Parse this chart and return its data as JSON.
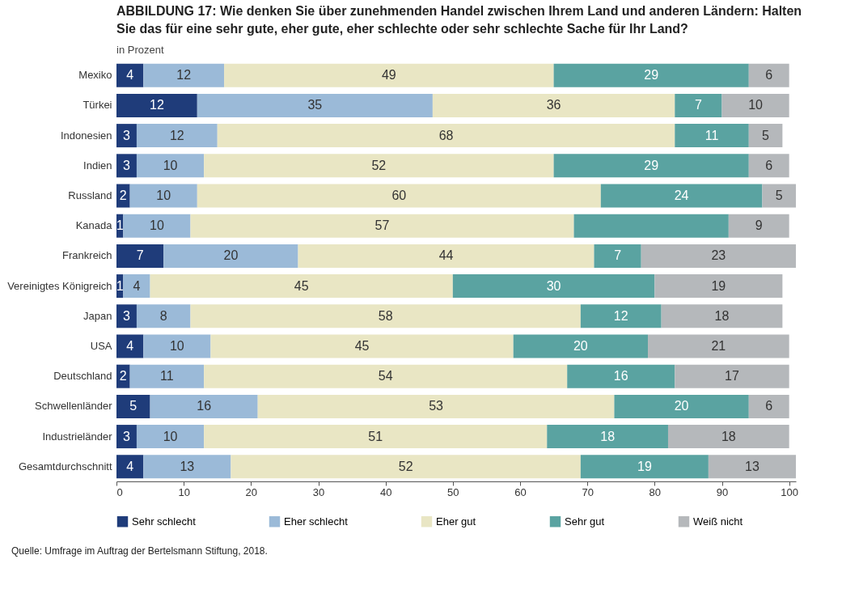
{
  "chart_data": {
    "type": "bar",
    "orientation": "horizontal",
    "stacked": true,
    "title": "ABBILDUNG 17: Wie denken Sie über zunehmenden Handel zwischen Ihrem Land und anderen Ländern: Halten Sie das für eine sehr gute, eher gute, eher schlechte oder sehr schlechte Sache für Ihr Land?",
    "subtitle": "in Prozent",
    "categories": [
      "Mexiko",
      "Türkei",
      "Indonesien",
      "Indien",
      "Russland",
      "Kanada",
      "Frankreich",
      "Vereinigtes Königreich",
      "Japan",
      "USA",
      "Deutschland",
      "Schwellenländer",
      "Industrieländer",
      "Gesamtdurchschnitt"
    ],
    "series": [
      {
        "name": "Sehr schlecht",
        "color": "#1f3c7a",
        "values": [
          4,
          12,
          3,
          3,
          2,
          1,
          7,
          1,
          3,
          4,
          2,
          5,
          3,
          4
        ],
        "value_labels": [
          "4",
          "12",
          "3",
          "3",
          "2",
          "1",
          "7",
          "1",
          "3",
          "4",
          "2",
          "5",
          "3",
          "4"
        ]
      },
      {
        "name": "Eher schlecht",
        "color": "#9bbad8",
        "values": [
          12,
          35,
          12,
          10,
          10,
          10,
          20,
          4,
          8,
          10,
          11,
          16,
          10,
          13
        ],
        "value_labels": [
          "12",
          "35",
          "12",
          "10",
          "10",
          "10",
          "20",
          "4",
          "8",
          "10",
          "11",
          "16",
          "10",
          "13"
        ]
      },
      {
        "name": "Eher gut",
        "color": "#e9e6c4",
        "values": [
          49,
          36,
          68,
          52,
          60,
          57,
          44,
          45,
          58,
          45,
          54,
          53,
          51,
          52
        ],
        "value_labels": [
          "49",
          "36",
          "68",
          "52",
          "60",
          "57",
          "44",
          "45",
          "58",
          "45",
          "54",
          "53",
          "51",
          "52"
        ]
      },
      {
        "name": "Sehr gut",
        "color": "#5aa3a1",
        "values": [
          29,
          7,
          11,
          29,
          24,
          23,
          7,
          30,
          12,
          20,
          16,
          20,
          18,
          19
        ],
        "value_labels": [
          "29",
          "7",
          "11",
          "29",
          "24",
          null,
          "7",
          "30",
          "12",
          "20",
          "16",
          "20",
          "18",
          "19"
        ]
      },
      {
        "name": "Weiß nicht",
        "color": "#b5b8bb",
        "values": [
          6,
          10,
          5,
          6,
          5,
          9,
          23,
          19,
          18,
          21,
          17,
          6,
          18,
          13
        ],
        "value_labels": [
          "6",
          "10",
          "5",
          "6",
          "5",
          "9",
          "23",
          "19",
          "18",
          "21",
          "17",
          "6",
          "18",
          "13"
        ]
      }
    ],
    "xlim": [
      0,
      101
    ],
    "xticks": [
      0,
      10,
      20,
      30,
      40,
      50,
      60,
      70,
      80,
      90,
      100
    ],
    "grid": false,
    "legend": "bottom",
    "annotations": [
      "Quelle: Umfrage im Auftrag der Bertelsmann Stiftung, 2018."
    ]
  }
}
